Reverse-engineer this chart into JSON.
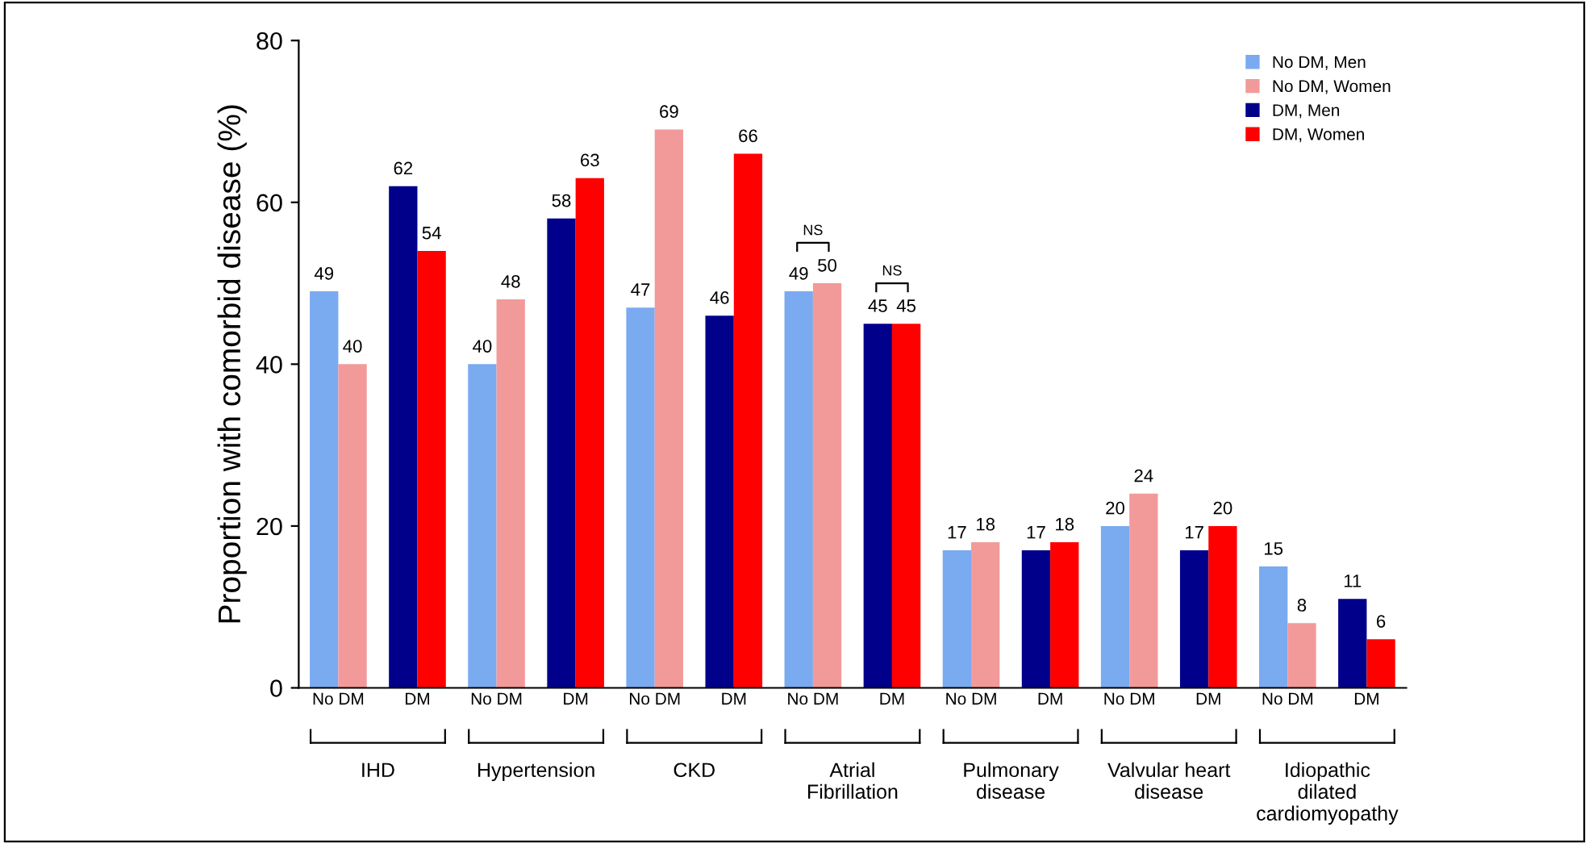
{
  "chart_data": {
    "type": "bar",
    "ylabel": "Proportion with comorbid disease (%)",
    "categories": [
      "No DM",
      "DM",
      "No DM",
      "DM",
      "No DM",
      "DM",
      "No DM",
      "DM",
      "No DM",
      "DM",
      "No DM",
      "DM",
      "No DM",
      "DM"
    ],
    "series": [
      {
        "name": "No DM, Men",
        "color": "#7aaaf0",
        "values": [
          49,
          null,
          40,
          null,
          47,
          null,
          49,
          null,
          17,
          null,
          20,
          null,
          15,
          null
        ]
      },
      {
        "name": "No DM, Women",
        "color": "#f29a9a",
        "values": [
          40,
          null,
          48,
          null,
          69,
          null,
          50,
          null,
          18,
          null,
          24,
          null,
          8,
          null
        ]
      },
      {
        "name": "DM, Men",
        "color": "#00008b",
        "values": [
          null,
          62,
          null,
          58,
          null,
          46,
          null,
          45,
          null,
          17,
          null,
          17,
          null,
          11
        ]
      },
      {
        "name": "DM, Women",
        "color": "#ff0000",
        "values": [
          null,
          54,
          null,
          63,
          null,
          66,
          null,
          45,
          null,
          18,
          null,
          20,
          null,
          6
        ]
      }
    ],
    "annotations": [
      "IHD",
      "Hypertension",
      "CKD",
      "Atrial\nFibrillation",
      "Pulmonary\ndisease",
      "Valvular heart\ndisease",
      "Idiopathic\ndilated\ncardiomyopathy",
      "NS",
      "NS"
    ],
    "ylim": [
      0,
      80
    ],
    "yticks": [
      0,
      20,
      40,
      60,
      80
    ],
    "grid": false,
    "legend": "top right",
    "data_labels": true
  }
}
